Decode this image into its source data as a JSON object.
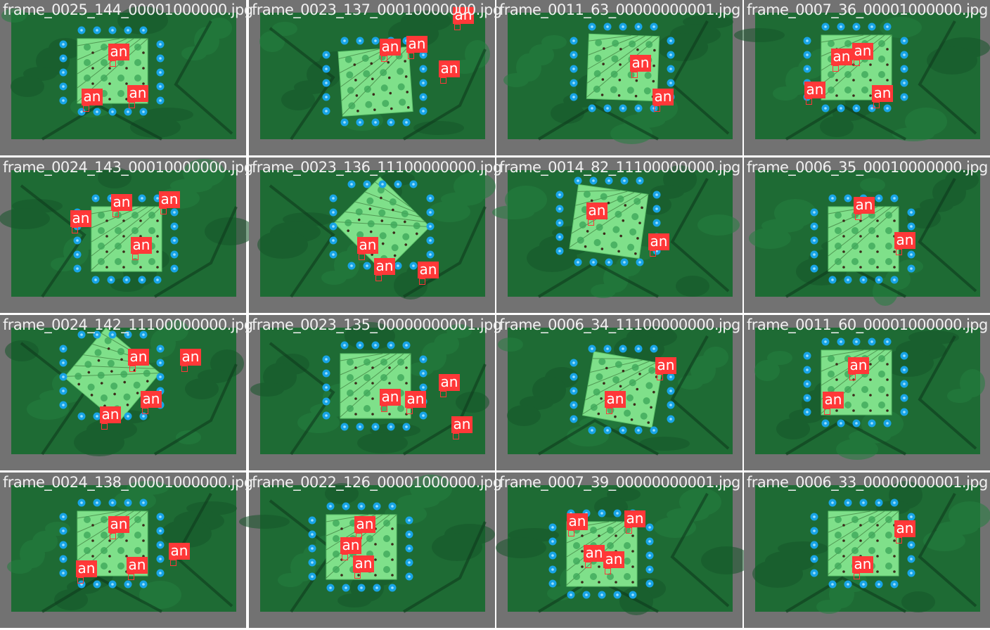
{
  "label_color": "#ff3838",
  "tiles": [
    {
      "filename": "frame_0025_144_00001000000.jpg",
      "detections": [
        {
          "label": "an"
        },
        {
          "label": "an"
        },
        {
          "label": "an"
        }
      ]
    },
    {
      "filename": "frame_0023_137_00010000000.jpg",
      "detections": [
        {
          "label": "an"
        },
        {
          "label": "an"
        },
        {
          "label": "an"
        },
        {
          "label": "an"
        }
      ]
    },
    {
      "filename": "frame_0011_63_00000000001.jpg",
      "detections": [
        {
          "label": "an"
        },
        {
          "label": "an"
        }
      ]
    },
    {
      "filename": "frame_0007_36_00001000000.jpg",
      "detections": [
        {
          "label": "an"
        },
        {
          "label": "an"
        },
        {
          "label": "an"
        },
        {
          "label": "an"
        }
      ]
    },
    {
      "filename": "frame_0024_143_00010000000.jpg",
      "detections": [
        {
          "label": "an"
        },
        {
          "label": "an"
        },
        {
          "label": "an"
        },
        {
          "label": "an"
        }
      ]
    },
    {
      "filename": "frame_0023_136_11100000000.jpg",
      "detections": [
        {
          "label": "an"
        },
        {
          "label": "an"
        },
        {
          "label": "an"
        }
      ]
    },
    {
      "filename": "frame_0014_82_11100000000.jpg",
      "detections": [
        {
          "label": "an"
        },
        {
          "label": "an"
        }
      ]
    },
    {
      "filename": "frame_0006_35_00010000000.jpg",
      "detections": [
        {
          "label": "an"
        },
        {
          "label": "an"
        }
      ]
    },
    {
      "filename": "frame_0024_142_11100000000.jpg",
      "detections": [
        {
          "label": "an"
        },
        {
          "label": "an"
        },
        {
          "label": "an"
        },
        {
          "label": "an"
        }
      ]
    },
    {
      "filename": "frame_0023_135_00000000001.jpg",
      "detections": [
        {
          "label": "an"
        },
        {
          "label": "an"
        },
        {
          "label": "an"
        },
        {
          "label": "an"
        }
      ]
    },
    {
      "filename": "frame_0006_34_11100000000.jpg",
      "detections": [
        {
          "label": "an"
        },
        {
          "label": "an"
        }
      ]
    },
    {
      "filename": "frame_0011_60_00001000000.jpg",
      "detections": [
        {
          "label": "an"
        },
        {
          "label": "an"
        }
      ]
    },
    {
      "filename": "frame_0024_138_00001000000.jpg",
      "detections": [
        {
          "label": "an"
        },
        {
          "label": "an"
        },
        {
          "label": "an"
        },
        {
          "label": "an"
        }
      ]
    },
    {
      "filename": "frame_0022_126_00001000000.jpg",
      "detections": [
        {
          "label": "an"
        },
        {
          "label": "an"
        },
        {
          "label": "an"
        }
      ]
    },
    {
      "filename": "frame_0007_39_00000000001.jpg",
      "detections": [
        {
          "label": "an"
        },
        {
          "label": "an"
        },
        {
          "label": "an"
        },
        {
          "label": "an"
        }
      ]
    },
    {
      "filename": "frame_0006_33_00000000001.jpg",
      "detections": [
        {
          "label": "an"
        },
        {
          "label": "an"
        }
      ]
    }
  ]
}
